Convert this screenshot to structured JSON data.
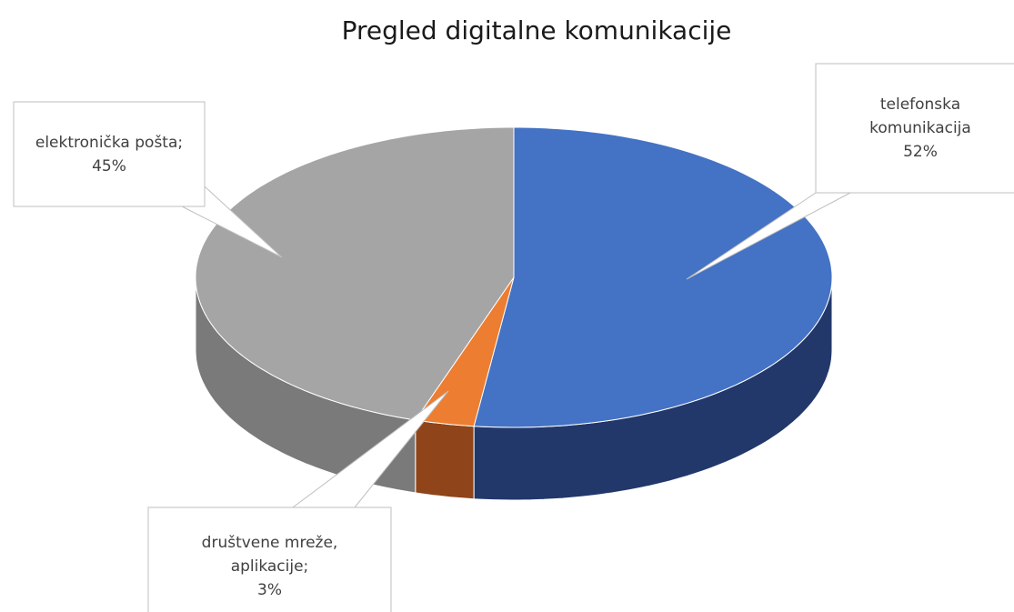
{
  "chart_data": {
    "type": "pie3d",
    "title": "Pregled digitalne komunikacije",
    "categories": [
      "telefonska komunikacija",
      "društvene mreže, aplikacije;",
      "elektronička pošta;"
    ],
    "values": [
      52,
      3,
      45
    ],
    "value_labels": [
      "52%",
      "3%",
      "45%"
    ],
    "colors": [
      "#4472c4",
      "#ed7d31",
      "#a5a5a5"
    ],
    "side_colors": [
      "#22386a",
      "#8f4419",
      "#7a7a7a"
    ]
  }
}
